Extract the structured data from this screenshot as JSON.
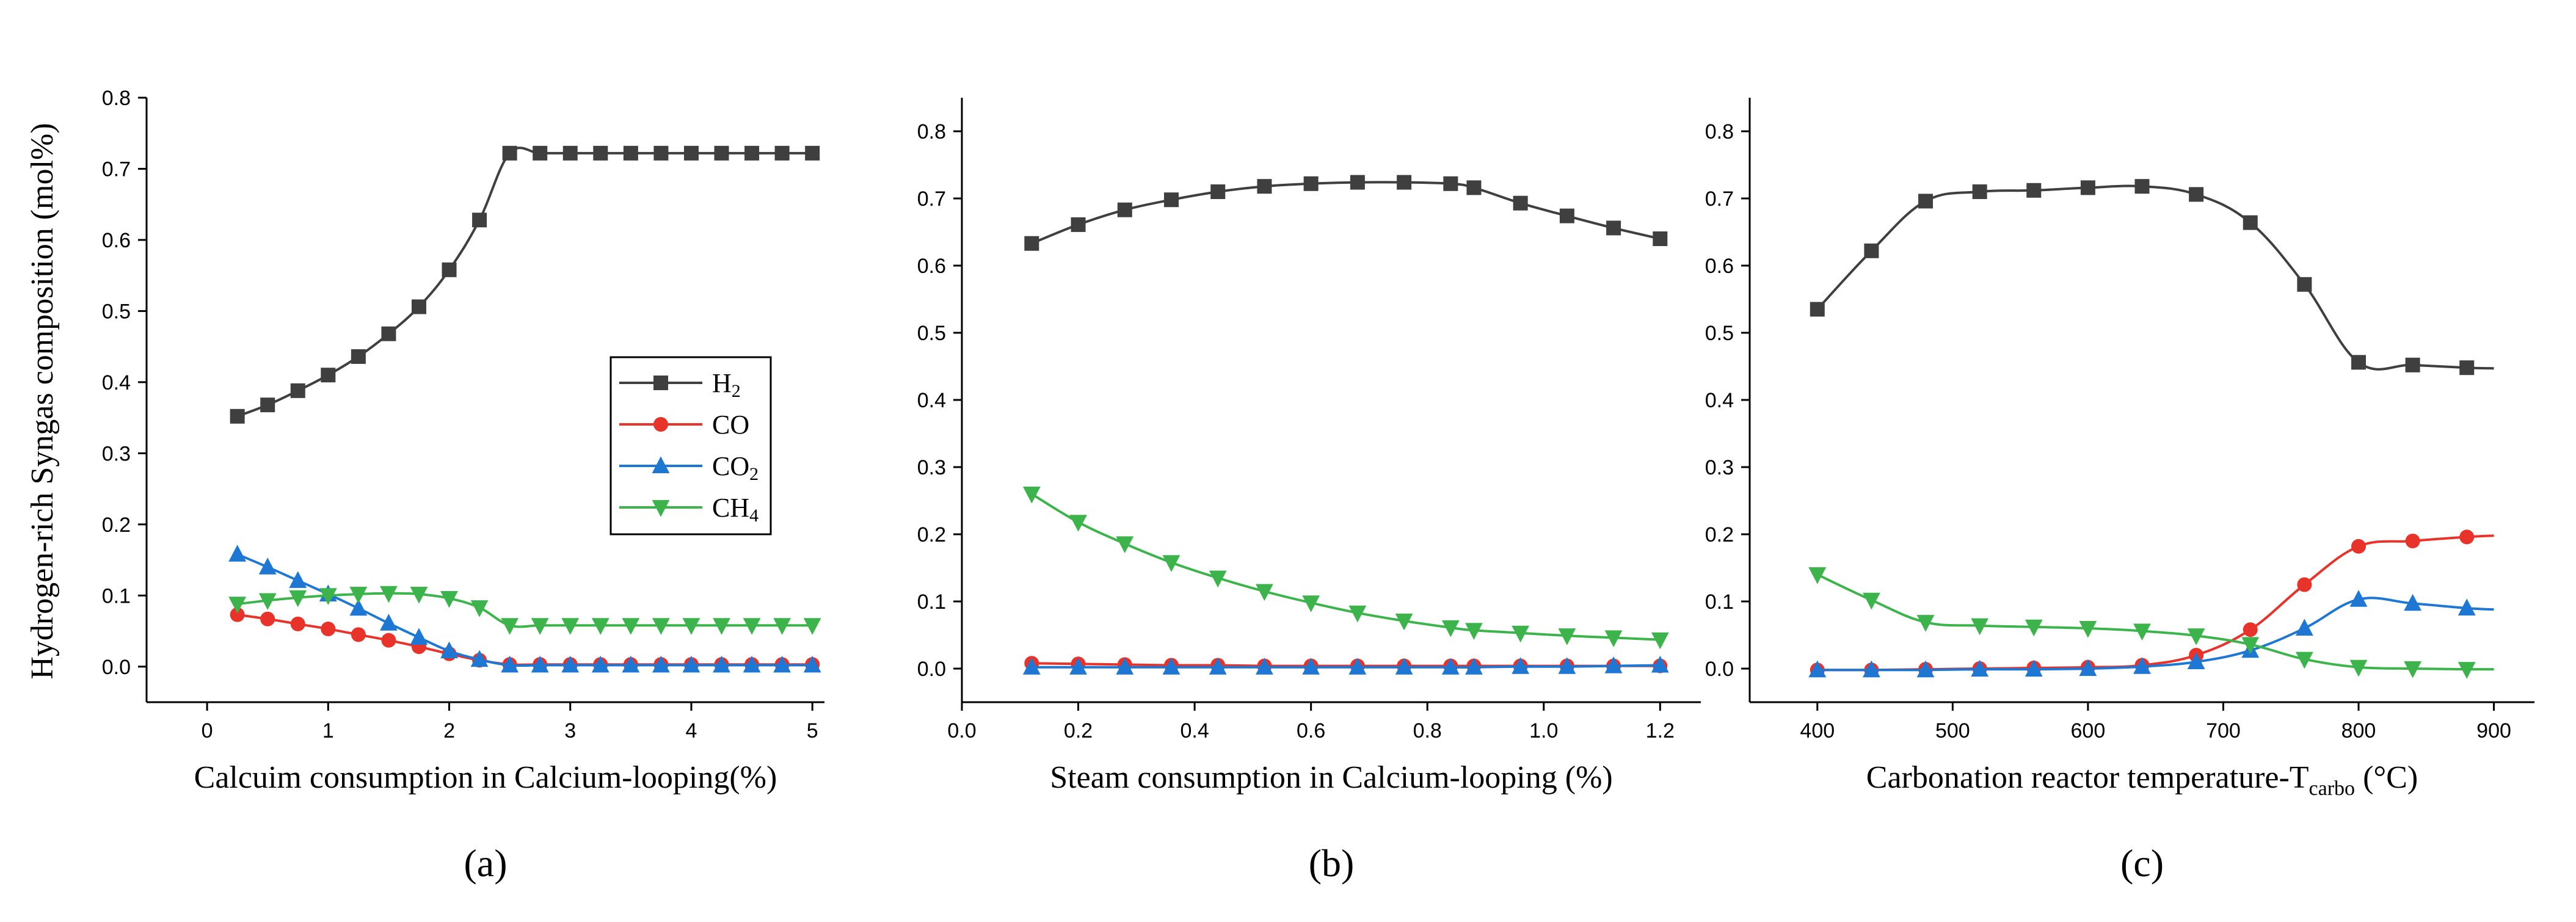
{
  "figure": {
    "ylabel": "Hydrogen-rich Syngas composition (mol%)"
  },
  "legend": {
    "entries": [
      {
        "name": "H",
        "sub": "2",
        "color": "#3f3f3f",
        "marker": "square"
      },
      {
        "name": "CO",
        "sub": "",
        "color": "#e8332b",
        "marker": "circle"
      },
      {
        "name": "CO",
        "sub": "2",
        "color": "#1f77d4",
        "marker": "triangle-up"
      },
      {
        "name": "CH",
        "sub": "4",
        "color": "#3cb44b",
        "marker": "triangle-down"
      }
    ]
  },
  "chart_data": [
    {
      "type": "line",
      "panel": "(a)",
      "xlabel": "Calcuim consumption in Calcium-looping(%)",
      "xlim": [
        -0.5,
        5.1
      ],
      "ylim": [
        -0.05,
        0.8
      ],
      "xticks": [
        0,
        1,
        2,
        3,
        4,
        5
      ],
      "xtick_labels": [
        "0",
        "1",
        "2",
        "3",
        "4",
        "5"
      ],
      "yticks": [
        0.0,
        0.1,
        0.2,
        0.3,
        0.4,
        0.5,
        0.6,
        0.7,
        0.8
      ],
      "ytick_labels": [
        "0.0",
        "0.1",
        "0.2",
        "0.3",
        "0.4",
        "0.5",
        "0.6",
        "0.7",
        "0.8"
      ],
      "x": [
        0.25,
        0.5,
        0.75,
        1.0,
        1.25,
        1.5,
        1.75,
        2.0,
        2.25,
        2.5,
        2.75,
        3.0,
        3.25,
        3.5,
        3.75,
        4.0,
        4.25,
        4.5,
        4.75,
        5.0
      ],
      "series": [
        {
          "name": "H2",
          "values": [
            0.352,
            0.368,
            0.388,
            0.41,
            0.436,
            0.468,
            0.506,
            0.558,
            0.628,
            0.722,
            0.722,
            0.722,
            0.722,
            0.722,
            0.722,
            0.722,
            0.722,
            0.722,
            0.722,
            0.722
          ]
        },
        {
          "name": "CO",
          "values": [
            0.073,
            0.067,
            0.06,
            0.053,
            0.045,
            0.037,
            0.028,
            0.018,
            0.009,
            0.003,
            0.003,
            0.003,
            0.003,
            0.003,
            0.003,
            0.003,
            0.003,
            0.003,
            0.003,
            0.003
          ]
        },
        {
          "name": "CO2",
          "values": [
            0.158,
            0.14,
            0.121,
            0.102,
            0.082,
            0.061,
            0.041,
            0.022,
            0.01,
            0.002,
            0.002,
            0.002,
            0.002,
            0.002,
            0.002,
            0.002,
            0.002,
            0.002,
            0.002,
            0.002
          ]
        },
        {
          "name": "CH4",
          "values": [
            0.088,
            0.093,
            0.097,
            0.1,
            0.102,
            0.103,
            0.102,
            0.096,
            0.083,
            0.058,
            0.058,
            0.058,
            0.058,
            0.058,
            0.058,
            0.058,
            0.058,
            0.058,
            0.058,
            0.058
          ]
        }
      ]
    },
    {
      "type": "line",
      "panel": "(b)",
      "xlabel": "Steam consumption in Calcium-looping (%)",
      "xlim": [
        0.0,
        1.27
      ],
      "ylim": [
        -0.05,
        0.85
      ],
      "xticks": [
        0.0,
        0.2,
        0.4,
        0.6,
        0.8,
        1.0,
        1.2
      ],
      "xtick_labels": [
        "0.0",
        "0.2",
        "0.4",
        "0.6",
        "0.8",
        "1.0",
        "1.2"
      ],
      "yticks": [
        0.0,
        0.1,
        0.2,
        0.3,
        0.4,
        0.5,
        0.6,
        0.7,
        0.8
      ],
      "ytick_labels": [
        "0.0",
        "0.1",
        "0.2",
        "0.3",
        "0.4",
        "0.5",
        "0.6",
        "0.7",
        "0.8"
      ],
      "x": [
        0.12,
        0.2,
        0.28,
        0.36,
        0.44,
        0.52,
        0.6,
        0.68,
        0.76,
        0.84,
        0.88,
        0.96,
        1.04,
        1.12,
        1.2
      ],
      "series": [
        {
          "name": "H2",
          "values": [
            0.633,
            0.661,
            0.683,
            0.698,
            0.71,
            0.718,
            0.722,
            0.724,
            0.724,
            0.722,
            0.716,
            0.693,
            0.674,
            0.656,
            0.64
          ]
        },
        {
          "name": "CO",
          "values": [
            0.008,
            0.007,
            0.006,
            0.005,
            0.005,
            0.004,
            0.004,
            0.004,
            0.004,
            0.004,
            0.004,
            0.004,
            0.004,
            0.004,
            0.004
          ]
        },
        {
          "name": "CO2",
          "values": [
            0.002,
            0.002,
            0.002,
            0.002,
            0.002,
            0.002,
            0.002,
            0.002,
            0.002,
            0.002,
            0.002,
            0.003,
            0.003,
            0.004,
            0.005
          ]
        },
        {
          "name": "CH4",
          "values": [
            0.26,
            0.218,
            0.186,
            0.158,
            0.135,
            0.115,
            0.098,
            0.083,
            0.071,
            0.061,
            0.057,
            0.053,
            0.049,
            0.046,
            0.043
          ]
        }
      ]
    },
    {
      "type": "line",
      "panel": "(c)",
      "xlabel_main": "Carbonation reactor temperature-T",
      "xlabel_sub": "carbo",
      "xlabel_unit": " (°C)",
      "xlim": [
        350,
        930
      ],
      "ylim": [
        -0.05,
        0.85
      ],
      "xticks": [
        400,
        500,
        600,
        700,
        800,
        900
      ],
      "xtick_labels": [
        "400",
        "500",
        "600",
        "700",
        "800",
        "900"
      ],
      "yticks": [
        0.0,
        0.1,
        0.2,
        0.3,
        0.4,
        0.5,
        0.6,
        0.7,
        0.8
      ],
      "ytick_labels": [
        "0.0",
        "0.1",
        "0.2",
        "0.3",
        "0.4",
        "0.5",
        "0.6",
        "0.7",
        "0.8"
      ],
      "x": [
        400,
        440,
        480,
        520,
        560,
        600,
        640,
        680,
        720,
        760,
        800,
        840,
        880,
        900
      ],
      "markers_at": [
        0,
        1,
        2,
        3,
        4,
        5,
        6,
        7,
        8,
        9,
        10,
        11,
        12
      ],
      "series": [
        {
          "name": "H2",
          "values": [
            0.535,
            0.622,
            0.696,
            0.71,
            0.712,
            0.716,
            0.718,
            0.706,
            0.664,
            0.572,
            0.456,
            0.452,
            0.448,
            0.447
          ]
        },
        {
          "name": "CO",
          "values": [
            -0.002,
            -0.002,
            -0.001,
            0.0,
            0.001,
            0.002,
            0.005,
            0.02,
            0.058,
            0.125,
            0.182,
            0.19,
            0.196,
            0.198
          ]
        },
        {
          "name": "CO2",
          "values": [
            -0.002,
            -0.002,
            -0.002,
            -0.001,
            -0.001,
            0.0,
            0.003,
            0.01,
            0.027,
            0.06,
            0.103,
            0.097,
            0.09,
            0.088
          ]
        },
        {
          "name": "CH4",
          "values": [
            0.14,
            0.102,
            0.069,
            0.064,
            0.062,
            0.06,
            0.056,
            0.049,
            0.036,
            0.014,
            0.002,
            0.0,
            -0.001,
            -0.001
          ]
        }
      ]
    }
  ]
}
